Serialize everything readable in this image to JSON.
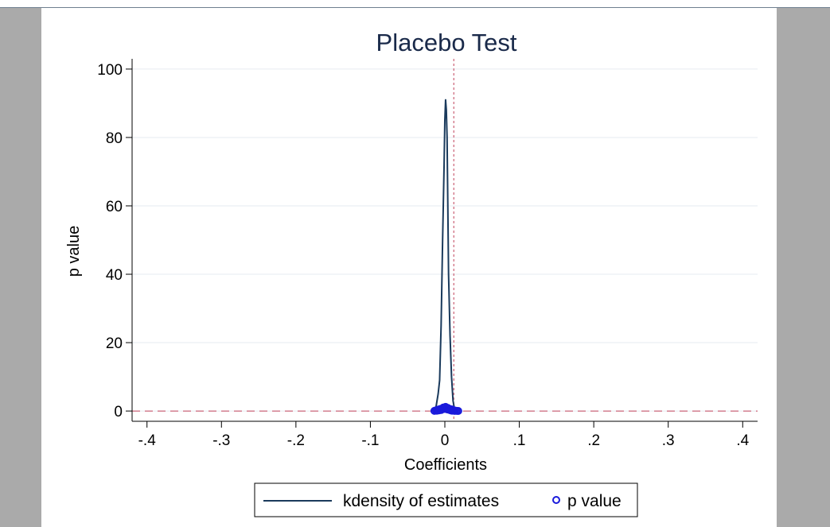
{
  "chart_data": {
    "type": "line",
    "title": "Placebo Test",
    "xlabel": "Coefficients",
    "ylabel": "p value",
    "xlim": [
      -0.42,
      0.42
    ],
    "ylim": [
      -3,
      103
    ],
    "xticks": [
      {
        "value": -0.4,
        "label": "-.4"
      },
      {
        "value": -0.3,
        "label": "-.3"
      },
      {
        "value": -0.2,
        "label": "-.2"
      },
      {
        "value": -0.1,
        "label": "-.1"
      },
      {
        "value": 0,
        "label": "0"
      },
      {
        "value": 0.1,
        "label": ".1"
      },
      {
        "value": 0.2,
        "label": ".2"
      },
      {
        "value": 0.3,
        "label": ".3"
      },
      {
        "value": 0.4,
        "label": ".4"
      }
    ],
    "yticks": [
      {
        "value": 0,
        "label": "0"
      },
      {
        "value": 20,
        "label": "20"
      },
      {
        "value": 40,
        "label": "40"
      },
      {
        "value": 60,
        "label": "60"
      },
      {
        "value": 80,
        "label": "80"
      },
      {
        "value": 100,
        "label": "100"
      }
    ],
    "grid": true,
    "reference_lines": {
      "vertical_x": 0.012,
      "horizontal_y": 0,
      "color": "#c0405a"
    },
    "series": [
      {
        "name": "kdensity of estimates",
        "kind": "line",
        "color": "#1a3a5c",
        "x": [
          -0.012,
          -0.009,
          -0.007,
          -0.005,
          -0.003,
          -0.001,
          0.0,
          0.001,
          0.002,
          0.003,
          0.004,
          0.005,
          0.007,
          0.009,
          0.011,
          0.013
        ],
        "y": [
          1,
          5,
          9,
          25,
          50,
          72,
          85,
          91,
          88,
          80,
          60,
          40,
          22,
          10,
          3,
          0.5
        ]
      },
      {
        "name": "p value",
        "kind": "scatter",
        "color": "#1a1adb",
        "x": [
          -0.014,
          -0.012,
          -0.011,
          -0.01,
          -0.009,
          -0.008,
          -0.007,
          -0.006,
          -0.005,
          -0.004,
          -0.003,
          -0.002,
          -0.001,
          0.0,
          0.001,
          0.002,
          0.003,
          0.004,
          0.005,
          0.006,
          0.007,
          0.008,
          0.009,
          0.01,
          0.011,
          0.012,
          0.013,
          0.014,
          0.016,
          0.018
        ],
        "y": [
          0.05,
          0.2,
          0.1,
          0.3,
          0.4,
          0.2,
          0.5,
          0.6,
          0.3,
          0.7,
          0.8,
          1.0,
          0.6,
          0.9,
          1.2,
          0.8,
          0.5,
          0.9,
          0.4,
          0.6,
          0.3,
          0.2,
          0.5,
          0.1,
          0.3,
          0.2,
          0.05,
          0.1,
          0.05,
          0.02
        ]
      }
    ],
    "legend": {
      "placement": "bottom",
      "entries": [
        "kdensity of estimates",
        "p value"
      ]
    }
  }
}
